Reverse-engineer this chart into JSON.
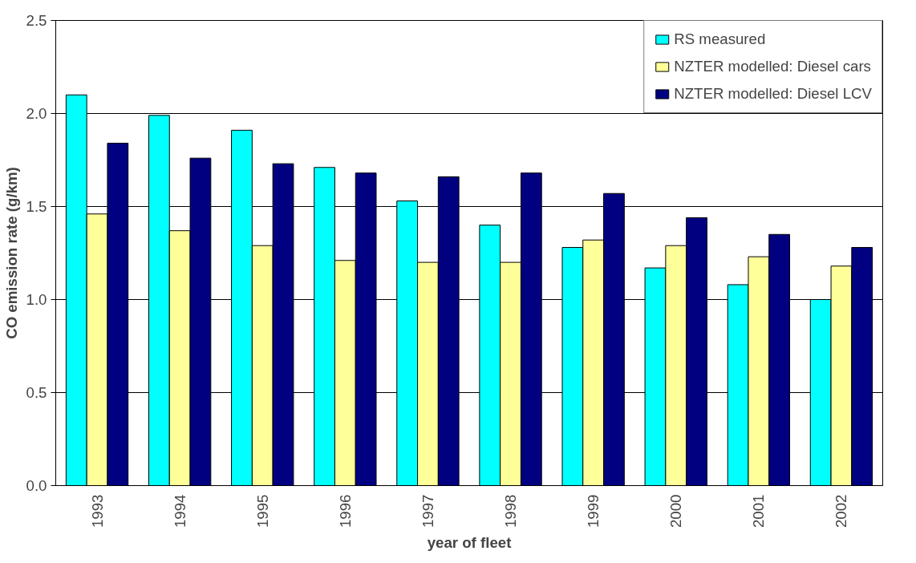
{
  "chart_data": {
    "type": "bar",
    "xlabel": "year of fleet",
    "ylabel": "CO emission rate (g/km)",
    "categories": [
      "1993",
      "1994",
      "1995",
      "1996",
      "1997",
      "1998",
      "1999",
      "2000",
      "2001",
      "2002"
    ],
    "series": [
      {
        "name": "RS measured",
        "color": "#00ffff",
        "values": [
          2.1,
          1.99,
          1.91,
          1.71,
          1.53,
          1.4,
          1.28,
          1.17,
          1.08,
          1.0
        ]
      },
      {
        "name": "NZTER modelled: Diesel cars",
        "color": "#ffff99",
        "values": [
          1.46,
          1.37,
          1.29,
          1.21,
          1.2,
          1.2,
          1.32,
          1.29,
          1.23,
          1.18
        ]
      },
      {
        "name": "NZTER modelled: Diesel LCV",
        "color": "#000080",
        "values": [
          1.84,
          1.76,
          1.73,
          1.68,
          1.66,
          1.68,
          1.57,
          1.44,
          1.35,
          1.28
        ]
      }
    ],
    "ylim": [
      0,
      2.5
    ],
    "yticks": [
      {
        "value": 0,
        "label": "0.0"
      },
      {
        "value": 0.5,
        "label": "0.5"
      },
      {
        "value": 1,
        "label": "1.0"
      },
      {
        "value": 1.5,
        "label": "1.5"
      },
      {
        "value": 2,
        "label": "2.0"
      },
      {
        "value": 2.5,
        "label": "2.5"
      }
    ],
    "grid": "y",
    "legend": "top right"
  }
}
